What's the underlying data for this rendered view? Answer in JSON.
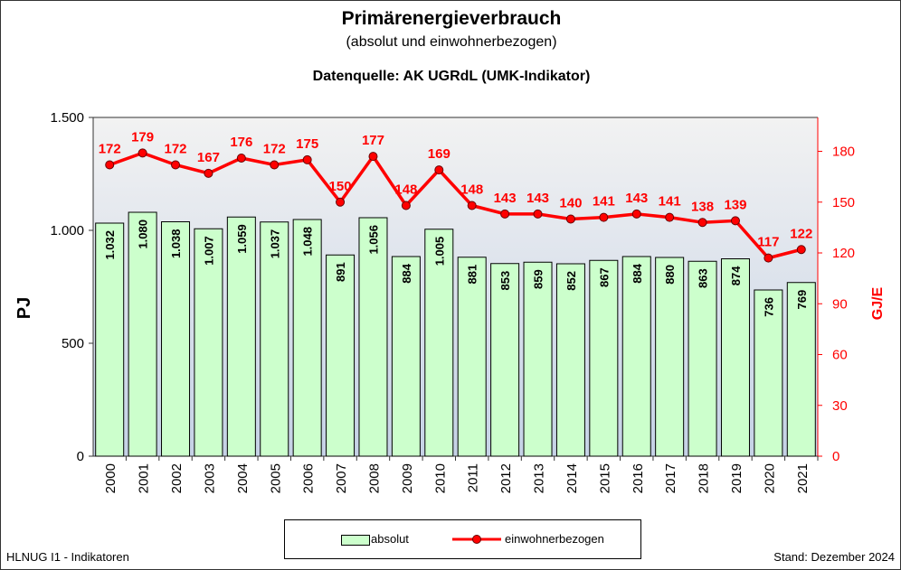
{
  "chart_data": {
    "type": "bar+line",
    "title": "Primärenergieverbrauch",
    "subtitle": "(absolut und einwohnerbezogen)",
    "source": "Datenquelle: AK UGRdL (UMK-Indikator)",
    "categories": [
      "2000",
      "2001",
      "2002",
      "2003",
      "2004",
      "2005",
      "2006",
      "2007",
      "2008",
      "2009",
      "2010",
      "2011",
      "2012",
      "2013",
      "2014",
      "2015",
      "2016",
      "2017",
      "2018",
      "2019",
      "2020",
      "2021"
    ],
    "series": [
      {
        "name": "absolut",
        "type": "bar",
        "axis": "left",
        "color": "#ccffcc",
        "values": [
          1032,
          1080,
          1038,
          1007,
          1059,
          1037,
          1048,
          891,
          1056,
          884,
          1005,
          881,
          853,
          859,
          852,
          867,
          884,
          880,
          863,
          874,
          736,
          769
        ],
        "labels": [
          "1.032",
          "1.080",
          "1.038",
          "1.007",
          "1.059",
          "1.037",
          "1.048",
          "891",
          "1.056",
          "884",
          "1.005",
          "881",
          "853",
          "859",
          "852",
          "867",
          "884",
          "880",
          "863",
          "874",
          "736",
          "769"
        ]
      },
      {
        "name": "einwohnerbezogen",
        "type": "line",
        "axis": "right",
        "color": "#ff0000",
        "values": [
          172,
          179,
          172,
          167,
          176,
          172,
          175,
          150,
          177,
          148,
          169,
          148,
          143,
          143,
          140,
          141,
          143,
          141,
          138,
          139,
          117,
          122
        ]
      }
    ],
    "ylabel": "PJ",
    "ylim": [
      0,
      1500
    ],
    "yticks": [
      0,
      500,
      1000,
      1500
    ],
    "ytick_labels": [
      "0",
      "500",
      "1.000",
      "1.500"
    ],
    "y2label": "GJ/E",
    "y2lim": [
      0,
      200
    ],
    "y2ticks": [
      0,
      30,
      60,
      90,
      120,
      150,
      180
    ],
    "legend": "bottom",
    "grid": false
  },
  "footer": {
    "left": "HLNUG I1 - Indikatoren",
    "right": "Stand: Dezember 2024"
  }
}
